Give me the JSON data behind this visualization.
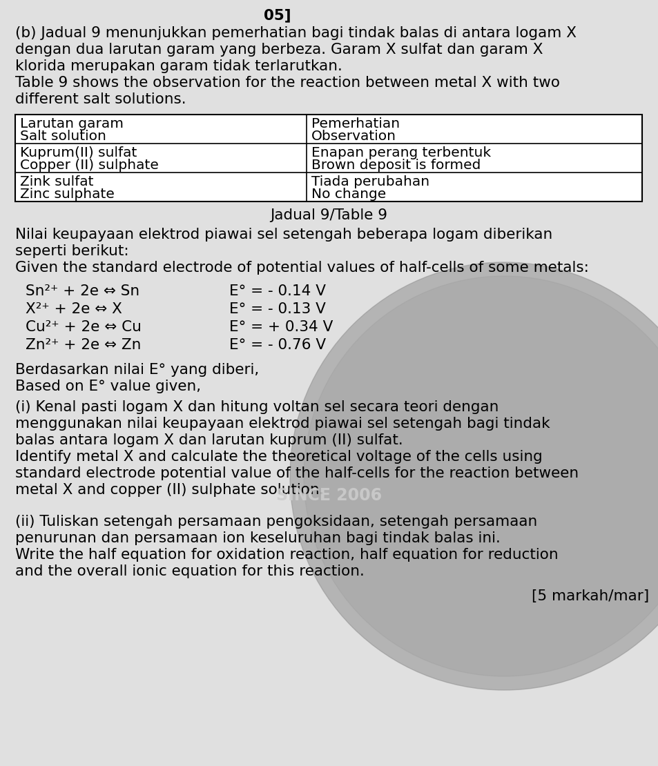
{
  "bg_color": "#b8b8b8",
  "paper_color": "#e0e0e0",
  "text_color": "#000000",
  "font_size_body": 15.5,
  "font_size_table": 14.5,
  "watermark_text": "SINCE 2006",
  "header_line1": "(b) Jadual 9 menunjukkan pemerhatian bagi tindak balas di antara logam X",
  "header_line2": "dengan dua larutan garam yang berbeza. Garam X sulfat dan garam X",
  "header_line3": "klorida merupakan garam tidak terlarutkan.",
  "header_line4": "Table 9 shows the observation for the reaction between metal X with two",
  "header_line5": "different salt solutions.",
  "table_col1_h1": "Larutan garam",
  "table_col1_h2": "Salt solution",
  "table_col2_h1": "Pemerhatian",
  "table_col2_h2": "Observation",
  "table_r1c1_1": "Kuprum(II) sulfat",
  "table_r1c1_2": "Copper (II) sulphate",
  "table_r1c2_1": "Enapan perang terbentuk",
  "table_r1c2_2": "Brown deposit is formed",
  "table_r2c1_1": "Zink sulfat",
  "table_r2c1_2": "Zinc sulphate",
  "table_r2c2_1": "Tiada perubahan",
  "table_r2c2_2": "No change",
  "table_caption": "Jadual 9/Table 9",
  "intro_line1": "Nilai keupayaan elektrod piawai sel setengah beberapa logam diberikan",
  "intro_line2": "seperti berikut:",
  "intro_line3": "Given the standard electrode of potential values of half-cells of some metals:",
  "eq1_left": "Sn²⁺ + 2e ⇔ Sn",
  "eq1_right": "E° = - 0.14 V",
  "eq2_left": "X²⁺ + 2e ⇔ X",
  "eq2_right": "E° = - 0.13 V",
  "eq3_left": "Cu²⁺ + 2e ⇔ Cu",
  "eq3_right": "E° = + 0.34 V",
  "eq4_left": "Zn²⁺ + 2e ⇔ Zn",
  "eq4_right": "E° = - 0.76 V",
  "based_line1": "Berdasarkan nilai E° yang diberi,",
  "based_line2": "Based on E° value given,",
  "pi_line1": "(i) Kenal pasti logam X dan hitung voltan sel secara teori dengan",
  "pi_line2": "menggunakan nilai keupayaan elektrod piawai sel setengah bagi tindak",
  "pi_line3": "balas antara logam X dan larutan kuprum (II) sulfat.",
  "pi_line4": "Identify metal X and calculate the theoretical voltage of the cells using",
  "pi_line5": "standard electrode potential value of the half-cells for the reaction between",
  "pi_line6": "metal X and copper (II) sulphate solution.",
  "pii_line1": "(ii) Tuliskan setengah persamaan pengoksidaan, setengah persamaan",
  "pii_line2": "penurunan dan persamaan ion keseluruhan bagi tindak balas ini.",
  "pii_line3": "Write the half equation for oxidation reaction, half equation for reduction",
  "pii_line4": "and the overall ionic equation for this reaction.",
  "marks_text": "[5 markah/mar]",
  "top_text": "                                                05]"
}
